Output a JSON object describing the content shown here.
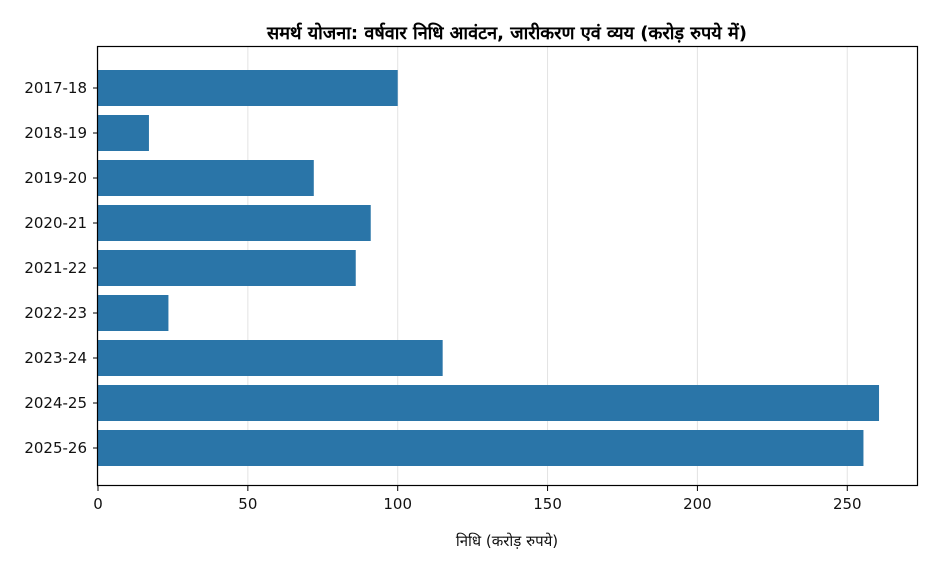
{
  "chart_data": {
    "type": "bar",
    "orientation": "horizontal",
    "title": "समर्थ योजना: वर्षवार निधि आवंटन, जारीकरण एवं व्यय (करोड़ रुपये में)",
    "xlabel": "निधि (करोड़ रुपये)",
    "ylabel": "",
    "categories": [
      "2017-18",
      "2018-19",
      "2019-20",
      "2020-21",
      "2021-22",
      "2022-23",
      "2023-24",
      "2024-25",
      "2025-26"
    ],
    "values": [
      100,
      17,
      72,
      91,
      86,
      23.5,
      115,
      260.6,
      255.4
    ],
    "xlim": [
      0,
      273.6
    ],
    "xticks": [
      0,
      50,
      100,
      150,
      200,
      250
    ],
    "grid": "vertical",
    "legend": "none",
    "bar_color": "#2a75a8"
  }
}
